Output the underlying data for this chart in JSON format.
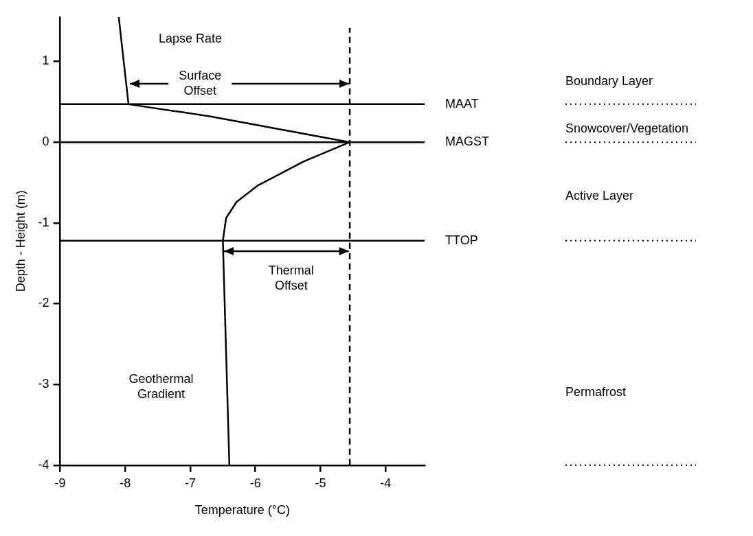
{
  "chart_data": {
    "type": "line",
    "xlabel": "Temperature (°C)",
    "ylabel": "Depth - Height (m)",
    "xlim": [
      -9,
      -3.4
    ],
    "ylim": [
      -4,
      1.55
    ],
    "xticks": [
      -9,
      -8,
      -7,
      -6,
      -5,
      -4
    ],
    "yticks": [
      -4,
      -3,
      -2,
      -1,
      0,
      1
    ],
    "series": [
      {
        "color": "#000000",
        "x": [
          -8.1,
          -7.95,
          -6.7,
          -4.55,
          -5.26,
          -5.97,
          -6.29,
          -6.45,
          -6.5,
          -6.4
        ],
        "values": [
          1.55,
          0.47,
          0.32,
          0,
          -0.24,
          -0.54,
          -0.74,
          -0.94,
          -1.22,
          -4
        ]
      }
    ],
    "marker": "none",
    "line_style": "solid",
    "grid": false,
    "legend": false,
    "ref_lines": [
      {
        "axis": "y",
        "value": 0.47,
        "label": "MAAT"
      },
      {
        "axis": "y",
        "value": 0,
        "label": "MAGST"
      },
      {
        "axis": "y",
        "value": -1.22,
        "label": "TTOP"
      },
      {
        "axis": "x",
        "value": -4.55,
        "line_style": "dashed"
      }
    ],
    "annotations": [
      "Lapse Rate",
      {
        "text": "Surface Offset",
        "x": -4.55,
        "y": 0.72
      },
      "Thermal Offset",
      "Geothermal Gradient",
      "Boundary Layer",
      "Snowcover/Vegetation",
      "Active Layer",
      "Permafrost"
    ]
  }
}
